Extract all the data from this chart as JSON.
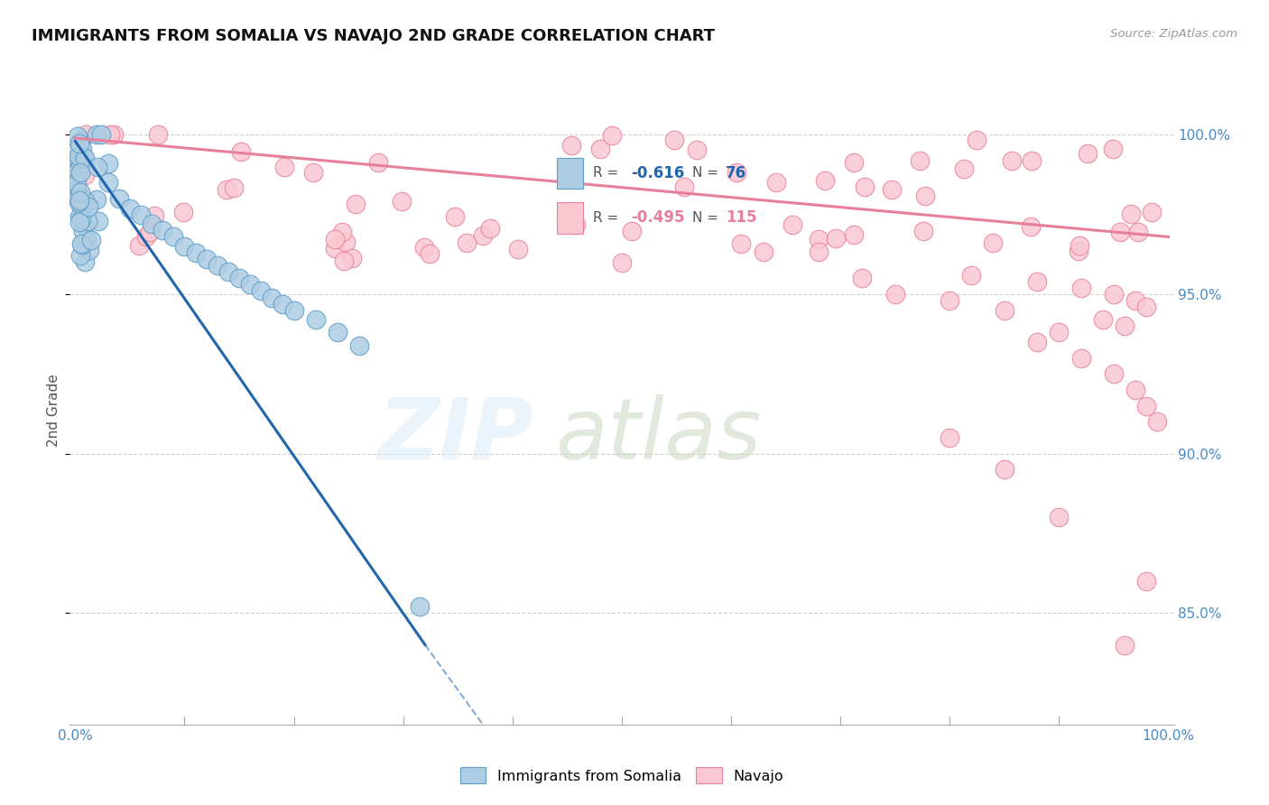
{
  "title": "IMMIGRANTS FROM SOMALIA VS NAVAJO 2ND GRADE CORRELATION CHART",
  "source": "Source: ZipAtlas.com",
  "ylabel": "2nd Grade",
  "legend": {
    "somalia_label": "Immigrants from Somalia",
    "navajo_label": "Navajo",
    "somalia_R": "-0.616",
    "somalia_N": "76",
    "navajo_R": "-0.495",
    "navajo_N": "115"
  },
  "xlim": [
    0.0,
    1.0
  ],
  "ylim_data": [
    0.82,
    1.01
  ],
  "y_ticks": [
    0.85,
    0.9,
    0.95,
    1.0
  ],
  "y_tick_labels": [
    "85.0%",
    "90.0%",
    "95.0%",
    "100.0%"
  ],
  "somalia_fill": "#aecde3",
  "somalia_edge": "#5b9dc8",
  "navajo_fill": "#f9c8d3",
  "navajo_edge": "#e8829a",
  "somalia_line_color": "#2166ac",
  "navajo_line_color": "#e87f9a",
  "background_color": "#ffffff",
  "grid_color": "#cccccc",
  "watermark_zip_color": "#d8e8f0",
  "watermark_atlas_color": "#c8d8c8",
  "tick_label_color": "#4a8ac4",
  "ylabel_color": "#555555",
  "title_color": "#111111",
  "source_color": "#999999",
  "legend_text_color": "#555555",
  "somalia_r_color": "#2166ac",
  "navajo_r_color": "#e87f9a"
}
